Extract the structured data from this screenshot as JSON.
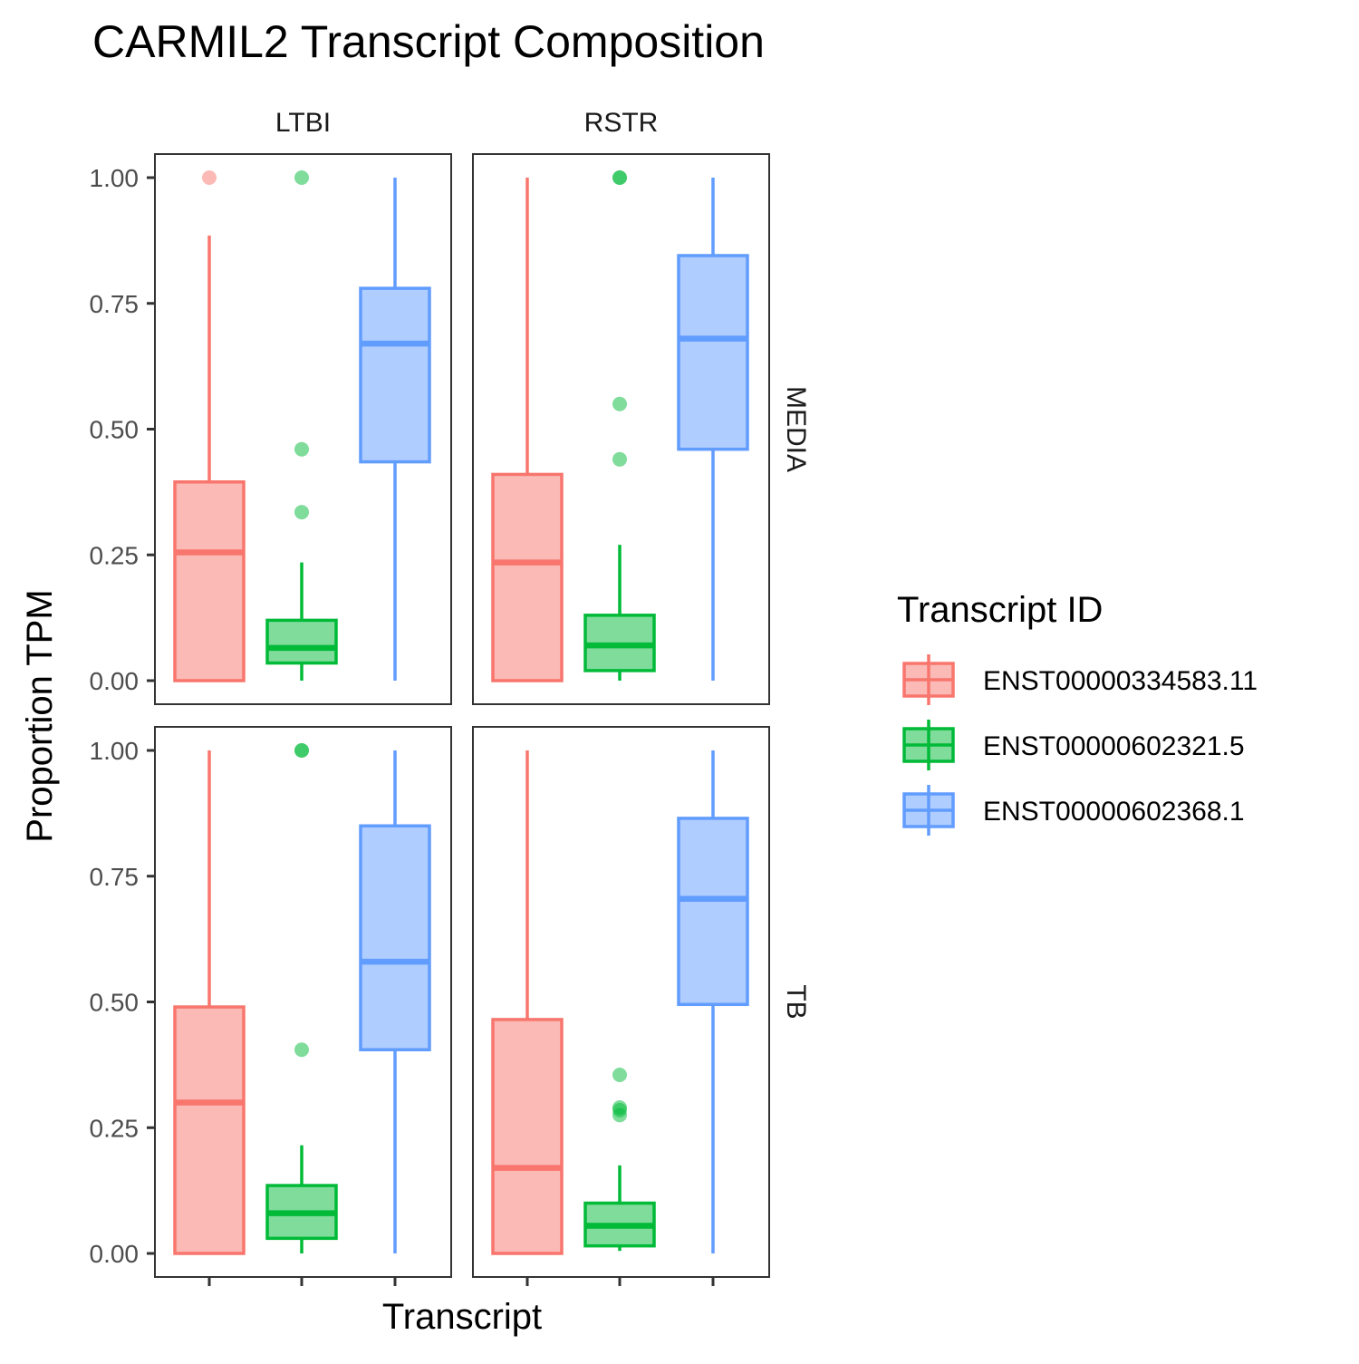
{
  "chart_data": {
    "type": "boxplot",
    "title": "CARMIL2 Transcript Composition",
    "xlabel": "Transcript",
    "ylabel": "Proportion TPM",
    "ylim": [
      0,
      1
    ],
    "yticks": [
      0,
      0.25,
      0.5,
      0.75,
      1.0
    ],
    "ytick_labels": [
      "0.00",
      "0.25",
      "0.50",
      "0.75",
      "1.00"
    ],
    "facet_columns": [
      "LTBI",
      "RSTR"
    ],
    "facet_rows": [
      "MEDIA",
      "TB"
    ],
    "legend": {
      "title": "Transcript ID",
      "placement": "right",
      "entries": [
        {
          "label": "ENST00000334583.11",
          "color": "#F8766D"
        },
        {
          "label": "ENST00000602321.5",
          "color": "#00BA38"
        },
        {
          "label": "ENST00000602368.1",
          "color": "#619CFF"
        }
      ]
    },
    "panels": [
      {
        "column": "LTBI",
        "row": "MEDIA",
        "boxes": [
          {
            "series": "ENST00000334583.11",
            "lower_whisker": 0.0,
            "q1": 0.0,
            "median": 0.255,
            "q3": 0.395,
            "upper_whisker": 0.885,
            "outliers": [
              1.0
            ]
          },
          {
            "series": "ENST00000602321.5",
            "lower_whisker": 0.0,
            "q1": 0.035,
            "median": 0.065,
            "q3": 0.12,
            "upper_whisker": 0.235,
            "outliers": [
              0.335,
              0.46,
              1.0
            ]
          },
          {
            "series": "ENST00000602368.1",
            "lower_whisker": 0.0,
            "q1": 0.435,
            "median": 0.67,
            "q3": 0.78,
            "upper_whisker": 1.0,
            "outliers": []
          }
        ]
      },
      {
        "column": "RSTR",
        "row": "MEDIA",
        "boxes": [
          {
            "series": "ENST00000334583.11",
            "lower_whisker": 0.0,
            "q1": 0.0,
            "median": 0.235,
            "q3": 0.41,
            "upper_whisker": 1.0,
            "outliers": []
          },
          {
            "series": "ENST00000602321.5",
            "lower_whisker": 0.0,
            "q1": 0.02,
            "median": 0.07,
            "q3": 0.13,
            "upper_whisker": 0.27,
            "outliers": [
              0.44,
              0.55,
              1.0,
              1.0
            ]
          },
          {
            "series": "ENST00000602368.1",
            "lower_whisker": 0.0,
            "q1": 0.46,
            "median": 0.68,
            "q3": 0.845,
            "upper_whisker": 1.0,
            "outliers": []
          }
        ]
      },
      {
        "column": "LTBI",
        "row": "TB",
        "boxes": [
          {
            "series": "ENST00000334583.11",
            "lower_whisker": 0.0,
            "q1": 0.0,
            "median": 0.3,
            "q3": 0.49,
            "upper_whisker": 1.0,
            "outliers": []
          },
          {
            "series": "ENST00000602321.5",
            "lower_whisker": 0.0,
            "q1": 0.03,
            "median": 0.08,
            "q3": 0.135,
            "upper_whisker": 0.215,
            "outliers": [
              0.405,
              1.0,
              1.0
            ]
          },
          {
            "series": "ENST00000602368.1",
            "lower_whisker": 0.0,
            "q1": 0.405,
            "median": 0.58,
            "q3": 0.85,
            "upper_whisker": 1.0,
            "outliers": []
          }
        ]
      },
      {
        "column": "RSTR",
        "row": "TB",
        "boxes": [
          {
            "series": "ENST00000334583.11",
            "lower_whisker": 0.0,
            "q1": 0.0,
            "median": 0.17,
            "q3": 0.465,
            "upper_whisker": 1.0,
            "outliers": []
          },
          {
            "series": "ENST00000602321.5",
            "lower_whisker": 0.005,
            "q1": 0.015,
            "median": 0.055,
            "q3": 0.1,
            "upper_whisker": 0.175,
            "outliers": [
              0.275,
              0.285,
              0.29,
              0.355
            ]
          },
          {
            "series": "ENST00000602368.1",
            "lower_whisker": 0.0,
            "q1": 0.495,
            "median": 0.705,
            "q3": 0.865,
            "upper_whisker": 1.0,
            "outliers": []
          }
        ]
      }
    ],
    "grid": false
  }
}
